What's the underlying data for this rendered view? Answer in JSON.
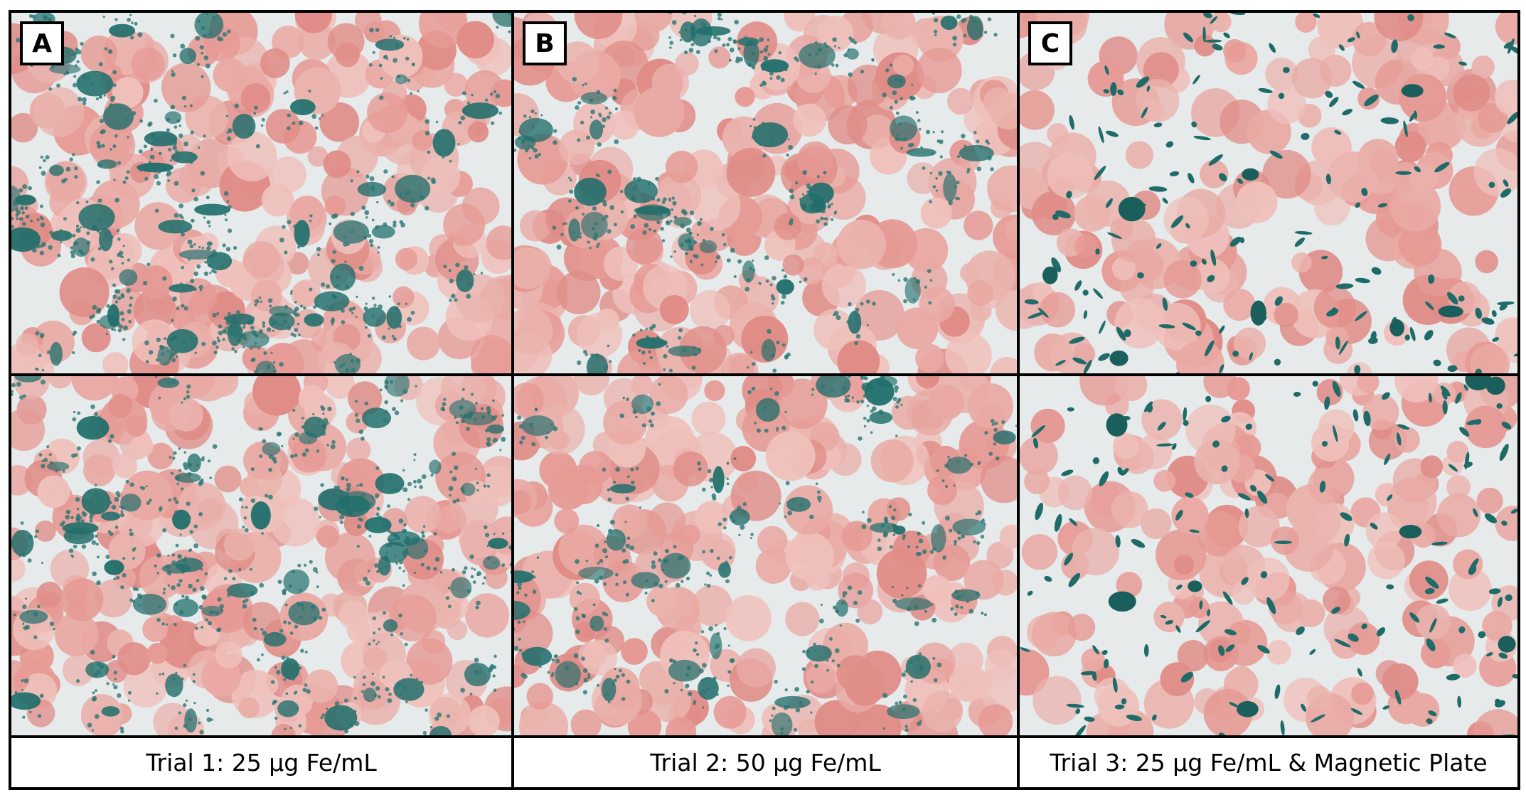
{
  "panels": [
    {
      "label": "A",
      "caption": "Trial 1: 25 µg Fe/mL"
    },
    {
      "label": "B",
      "caption": "Trial 2: 50 µg Fe/mL"
    },
    {
      "label": "C",
      "caption": "Trial 3: 25 µg Fe/mL & Magnetic Plate"
    }
  ]
}
